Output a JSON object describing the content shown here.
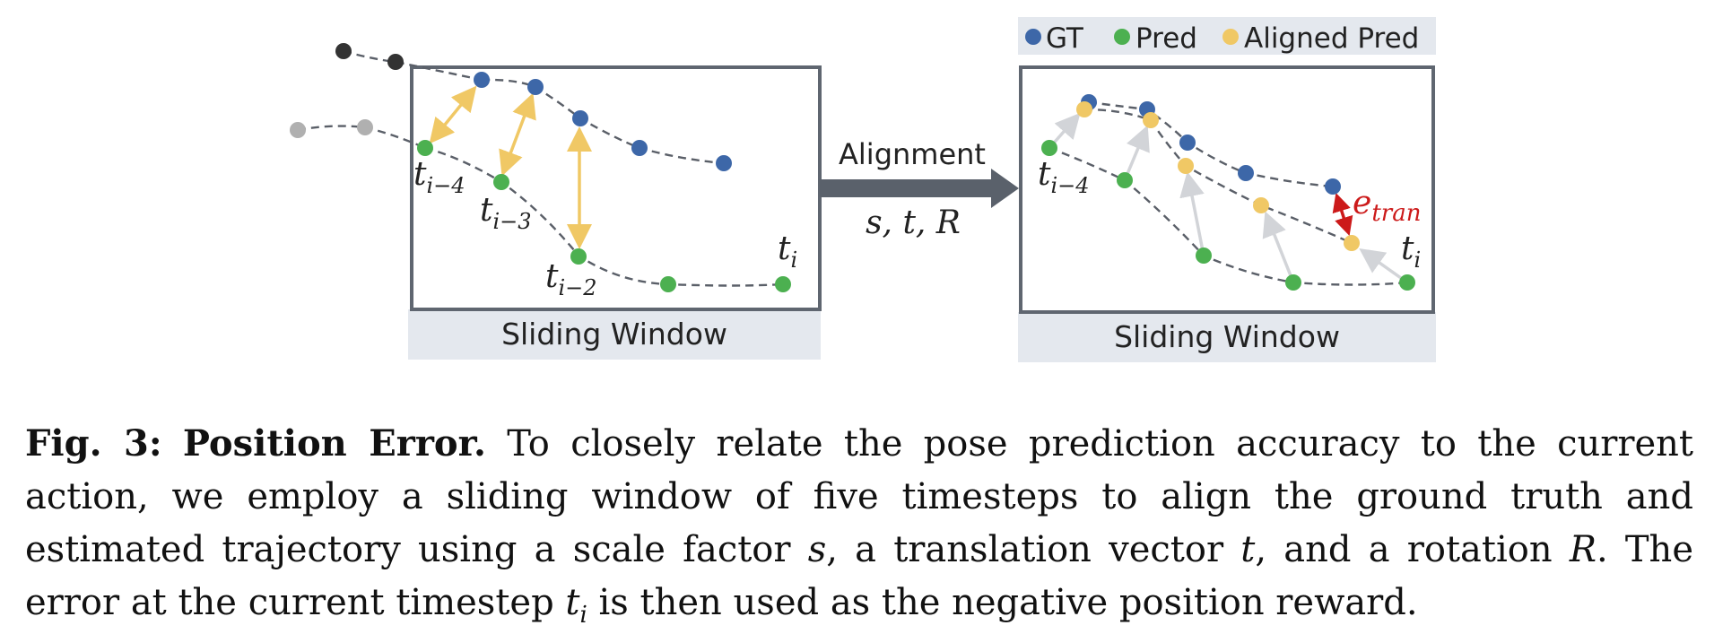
{
  "legend": {
    "gt": "GT",
    "pred": "Pred",
    "aligned_pred": "Aligned Pred"
  },
  "left_panel": {
    "title": "Sliding Window",
    "labels": [
      {
        "base": "t",
        "sub": "i−4"
      },
      {
        "base": "t",
        "sub": "i−3"
      },
      {
        "base": "t",
        "sub": "i−2"
      },
      {
        "base": "t",
        "sub": "i"
      }
    ]
  },
  "right_panel": {
    "title": "Sliding Window",
    "labels": [
      {
        "base": "t",
        "sub": "i−4"
      },
      {
        "base": "t",
        "sub": "i"
      }
    ],
    "error_label": {
      "base": "e",
      "sub": "tran"
    }
  },
  "arrow": {
    "label": "Alignment",
    "params": "s, t, R"
  },
  "colors": {
    "gt": "#3d67a8",
    "pred": "#4cb050",
    "aligned_pred": "#f0c865",
    "past_dark": "#333333",
    "past_light": "#b0b0b0",
    "error": "#cc1a1a",
    "panel_bg": "#e4e8ee",
    "arrow": "#5a616b"
  },
  "caption": {
    "fig": "Fig. 3:",
    "heading": "Position Error.",
    "text_1": " To closely relate the pose prediction accuracy to the current action, we employ a sliding window of five timesteps to align the ground truth and estimated trajectory using a scale factor ",
    "s": "s",
    "text_2": ", a translation vector ",
    "t": "t",
    "text_3": ", and a rotation ",
    "R": "R",
    "text_4": ". The error at the current timestep ",
    "ti_base": "t",
    "ti_sub": "i",
    "text_5": " is then used as the negative position reward."
  }
}
